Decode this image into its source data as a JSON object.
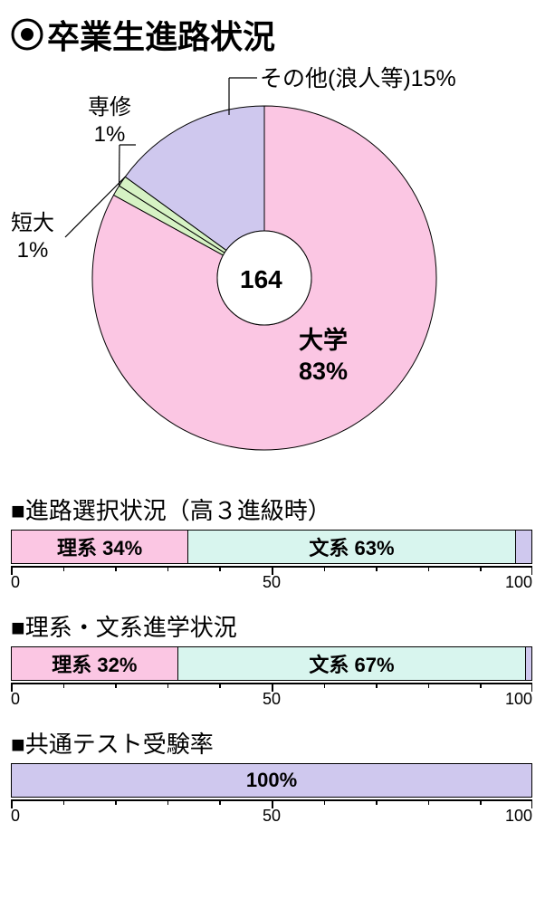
{
  "title": "卒業生進路状況",
  "donut": {
    "center_value": "164",
    "center_fontsize": 28,
    "outer_radius": 190,
    "inner_radius": 52,
    "stroke": "#000000",
    "stroke_width": 1,
    "slices": [
      {
        "name": "大学",
        "value": 83,
        "percent_label": "83%",
        "label": "大学",
        "color": "#fbc6e3"
      },
      {
        "name": "短大",
        "value": 1,
        "percent_label": "1%",
        "label": "短大",
        "color": "#d6f2c4"
      },
      {
        "name": "専修",
        "value": 1,
        "percent_label": "1%",
        "label": "専修",
        "color": "#d6f2c4"
      },
      {
        "name": "その他(浪人等)",
        "value": 15,
        "percent_label": "15%",
        "label": "その他(浪人等)",
        "color": "#cfc8ee"
      }
    ],
    "labels": {
      "univ_line1": "大学",
      "univ_line2": "83%",
      "tandai_line1": "短大",
      "tandai_line2": "1%",
      "senshu_line1": "専修",
      "senshu_line2": "1%",
      "other": "その他(浪人等)15%"
    }
  },
  "bars": [
    {
      "title": "■進路選択状況（高３進級時）",
      "segments": [
        {
          "label": "理系 34%",
          "value": 34,
          "color": "#fbc6e3"
        },
        {
          "label": "文系 63%",
          "value": 63,
          "color": "#d8f5ee"
        },
        {
          "label": "",
          "value": 3,
          "color": "#cfc8ee"
        }
      ],
      "axis": {
        "min": 0,
        "max": 100,
        "majors": [
          0,
          50,
          100
        ],
        "minor_step": 10
      }
    },
    {
      "title": "■理系・文系進学状況",
      "segments": [
        {
          "label": "理系 32%",
          "value": 32,
          "color": "#fbc6e3"
        },
        {
          "label": "文系 67%",
          "value": 67,
          "color": "#d8f5ee"
        },
        {
          "label": "",
          "value": 1,
          "color": "#cfc8ee"
        }
      ],
      "axis": {
        "min": 0,
        "max": 100,
        "majors": [
          0,
          50,
          100
        ],
        "minor_step": 10
      }
    },
    {
      "title": "■共通テスト受験率",
      "segments": [
        {
          "label": "100%",
          "value": 100,
          "color": "#cfc8ee"
        }
      ],
      "axis": {
        "min": 0,
        "max": 100,
        "majors": [
          0,
          50,
          100
        ],
        "minor_step": 10
      }
    }
  ]
}
